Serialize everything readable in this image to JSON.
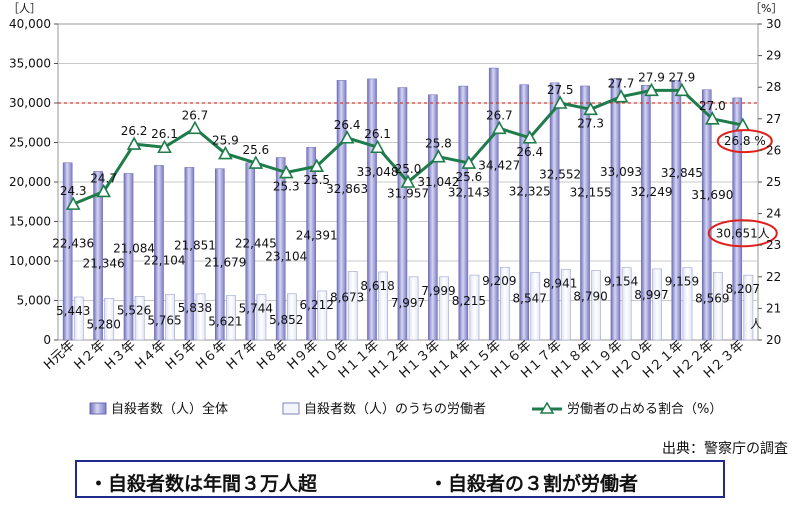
{
  "chart_data": {
    "type": "bar+line",
    "categories": [
      "H元年",
      "H２年",
      "H３年",
      "H４年",
      "H５年",
      "H６年",
      "H７年",
      "H８年",
      "H９年",
      "H１０年",
      "H１１年",
      "H１２年",
      "H１３年",
      "H１４年",
      "H１５年",
      "H１６年",
      "H１７年",
      "H１８年",
      "H１９年",
      "H２０年",
      "H２１年",
      "H２２年",
      "H２３年"
    ],
    "series": [
      {
        "name": "自殺者数（人）全体",
        "type": "bar",
        "axis": "left",
        "values": [
          22436,
          21346,
          21084,
          22104,
          21851,
          21679,
          22445,
          23104,
          24391,
          32863,
          33048,
          31957,
          31042,
          32143,
          34427,
          32325,
          32552,
          32155,
          33093,
          32249,
          32845,
          31690,
          30651
        ],
        "labels": [
          "22,436",
          "21,346",
          "21,084",
          "22,104",
          "21,851",
          "21,679",
          "22,445",
          "23,104",
          "24,391",
          "32,863",
          "33,048",
          "31,957",
          "31,042",
          "32,143",
          "34,427",
          "32,325",
          "32,552",
          "32,155",
          "33,093",
          "32,249",
          "32,845",
          "31,690",
          "30,651人"
        ]
      },
      {
        "name": "自殺者数（人）のうちの労働者",
        "type": "bar",
        "axis": "left",
        "values": [
          5443,
          5280,
          5526,
          5765,
          5838,
          5621,
          5744,
          5852,
          6212,
          8673,
          8618,
          7997,
          7999,
          8215,
          9209,
          8547,
          8941,
          8790,
          9154,
          8997,
          9159,
          8569,
          8207
        ],
        "labels": [
          "5,443",
          "5,280",
          "5,526",
          "5,765",
          "5,838",
          "5,621",
          "5,744",
          "5,852",
          "6,212",
          "8,673",
          "8,618",
          "7,997",
          "7,999",
          "8,215",
          "9,209",
          "8,547",
          "8,941",
          "8,790",
          "9,154",
          "8,997",
          "9,159",
          "8,569",
          "8,207"
        ]
      },
      {
        "name": "労働者の占める割合（%）",
        "type": "line",
        "axis": "right",
        "values": [
          24.3,
          24.7,
          26.2,
          26.1,
          26.7,
          25.9,
          25.6,
          25.3,
          25.5,
          26.4,
          26.1,
          25.0,
          25.8,
          25.6,
          26.7,
          26.4,
          27.5,
          27.3,
          27.7,
          27.9,
          27.9,
          27.0,
          26.8
        ],
        "labels": [
          "24.3",
          "24.7",
          "26.2",
          "26.1",
          "26.7",
          "25.9",
          "25.6",
          "25.3",
          "25.5",
          "26.4",
          "26.1",
          "25.0",
          "25.8",
          "25.6",
          "26.7",
          "26.4",
          "27.5",
          "27.3",
          "27.7",
          "27.9",
          "27.9",
          "27.0",
          "26.8 %"
        ]
      }
    ],
    "left_axis": {
      "unit": "［人］",
      "ylim": [
        0,
        40000
      ],
      "ticks": [
        "0",
        "5,000",
        "10,000",
        "15,000",
        "20,000",
        "25,000",
        "30,000",
        "35,000",
        "40,000"
      ]
    },
    "right_axis": {
      "unit": "［%］",
      "ylim": [
        20,
        30
      ],
      "ticks": [
        "20",
        "21",
        "22",
        "23",
        "24",
        "25",
        "26",
        "27",
        "28",
        "29",
        "30"
      ]
    },
    "trailing_unit_label": "人",
    "reference_line": {
      "axis": "left",
      "value": 30000,
      "style": "dashed",
      "color": "#d33a2c"
    },
    "highlight_circles": [
      "26.8 %",
      "30,651人"
    ],
    "legend_position": "bottom",
    "colors": {
      "total_bar": "#8f8fd0",
      "worker_bar": "#f3f5fb",
      "line": "#1e7b4a",
      "highlight": "#e0201a"
    }
  },
  "source_note": "出典：警察庁の調査",
  "summary": {
    "point1": "・自殺者数は年間３万人超",
    "point2": "・自殺者の３割が労働者"
  }
}
